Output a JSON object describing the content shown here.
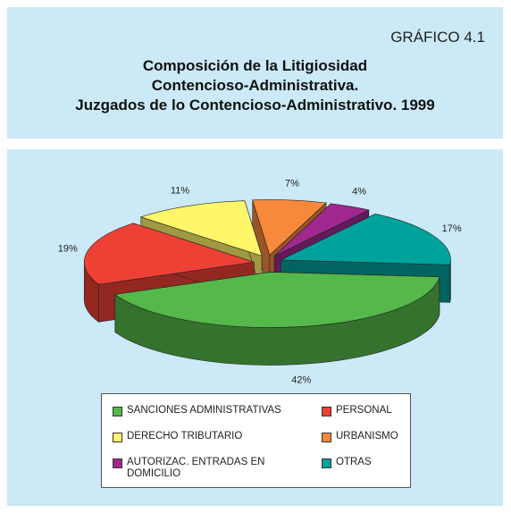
{
  "chart_data": {
    "type": "pie3d",
    "label": "GRÁFICO 4.1",
    "title": [
      "Composición de la Litigiosidad",
      "Contencioso-Administrativa.",
      "Juzgados de lo Contencioso-Administrativo. 1999"
    ],
    "categories": [
      "SANCIONES ADMINISTRATIVAS",
      "PERSONAL",
      "DERECHO TRIBUTARIO",
      "URBANISMO",
      "AUTORIZAC. ENTRADAS EN DOMICILIO",
      "OTRAS"
    ],
    "values": [
      42,
      19,
      11,
      7,
      4,
      17
    ],
    "value_labels": [
      "42%",
      "19%",
      "11%",
      "7%",
      "4%",
      "17%"
    ],
    "colors": [
      "#55b84a",
      "#ee4136",
      "#fff66a",
      "#f7893b",
      "#a1288f",
      "#00a39b"
    ],
    "legend": "bottom"
  }
}
